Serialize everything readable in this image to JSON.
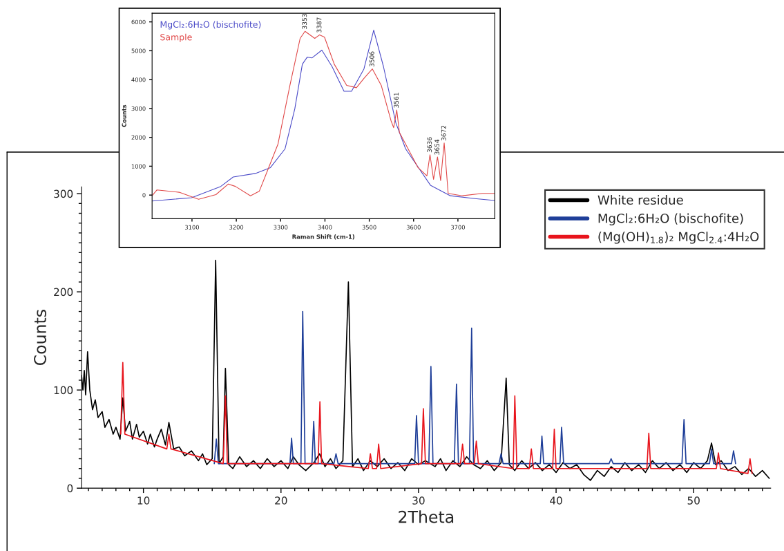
{
  "chart_data": [
    {
      "type": "line",
      "xlabel": "2Theta",
      "ylabel": "Counts",
      "xlim": [
        5.5,
        55.6
      ],
      "ylim": [
        0,
        307
      ],
      "xticks": [
        {
          "value": 6,
          "label": null
        },
        {
          "value": 7,
          "label": null
        },
        {
          "value": 8,
          "label": null
        },
        {
          "value": 9,
          "label": null
        },
        10,
        {
          "value": 11,
          "label": null
        },
        {
          "value": 12,
          "label": null
        },
        {
          "value": 13,
          "label": null
        },
        {
          "value": 14,
          "label": null
        },
        {
          "value": 15,
          "label": null
        },
        {
          "value": 16,
          "label": null
        },
        {
          "value": 17,
          "label": null
        },
        {
          "value": 18,
          "label": null
        },
        {
          "value": 19,
          "label": null
        },
        20,
        {
          "value": 21,
          "label": null
        },
        {
          "value": 22,
          "label": null
        },
        {
          "value": 23,
          "label": null
        },
        {
          "value": 24,
          "label": null
        },
        {
          "value": 25,
          "label": null
        },
        {
          "value": 26,
          "label": null
        },
        {
          "value": 27,
          "label": null
        },
        {
          "value": 28,
          "label": null
        },
        {
          "value": 29,
          "label": null
        },
        30,
        {
          "value": 31,
          "label": null
        },
        {
          "value": 32,
          "label": null
        },
        {
          "value": 33,
          "label": null
        },
        {
          "value": 34,
          "label": null
        },
        {
          "value": 35,
          "label": null
        },
        {
          "value": 36,
          "label": null
        },
        {
          "value": 37,
          "label": null
        },
        {
          "value": 38,
          "label": null
        },
        {
          "value": 39,
          "label": null
        },
        40,
        {
          "value": 41,
          "label": null
        },
        {
          "value": 42,
          "label": null
        },
        {
          "value": 43,
          "label": null
        },
        {
          "value": 44,
          "label": null
        },
        {
          "value": 45,
          "label": null
        },
        {
          "value": 46,
          "label": null
        },
        {
          "value": 47,
          "label": null
        },
        {
          "value": 48,
          "label": null
        },
        {
          "value": 49,
          "label": null
        },
        50,
        {
          "value": 51,
          "label": null
        },
        {
          "value": 52,
          "label": null
        },
        {
          "value": 53,
          "label": null
        },
        {
          "value": 54,
          "label": null
        },
        {
          "value": 55,
          "label": null
        }
      ],
      "yticks": [
        0,
        {
          "value": 10,
          "label": null
        },
        {
          "value": 20,
          "label": null
        },
        {
          "value": 30,
          "label": null
        },
        {
          "value": 40,
          "label": null
        },
        {
          "value": 50,
          "label": null
        },
        {
          "value": 60,
          "label": null
        },
        {
          "value": 70,
          "label": null
        },
        {
          "value": 80,
          "label": null
        },
        {
          "value": 90,
          "label": null
        },
        100,
        {
          "value": 110,
          "label": null
        },
        {
          "value": 120,
          "label": null
        },
        {
          "value": 130,
          "label": null
        },
        {
          "value": 140,
          "label": null
        },
        {
          "value": 150,
          "label": null
        },
        {
          "value": 160,
          "label": null
        },
        {
          "value": 170,
          "label": null
        },
        {
          "value": 180,
          "label": null
        },
        {
          "value": 190,
          "label": null
        },
        200,
        {
          "value": 210,
          "label": null
        },
        {
          "value": 220,
          "label": null
        },
        {
          "value": 230,
          "label": null
        },
        {
          "value": 240,
          "label": null
        },
        {
          "value": 250,
          "label": null
        },
        {
          "value": 260,
          "label": null
        },
        {
          "value": 270,
          "label": null
        },
        {
          "value": 280,
          "label": null
        },
        {
          "value": 290,
          "label": null
        },
        300
      ],
      "legend": "top right",
      "series": [
        {
          "name": "White residue",
          "color": "#000000",
          "x": [
            5.5,
            5.6,
            5.7,
            5.8,
            5.94,
            6.1,
            6.3,
            6.5,
            6.7,
            7.0,
            7.2,
            7.5,
            7.8,
            8.0,
            8.3,
            8.5,
            8.7,
            9.0,
            9.2,
            9.5,
            9.7,
            10.0,
            10.3,
            10.5,
            10.8,
            11.0,
            11.3,
            11.6,
            11.85,
            12.2,
            12.6,
            13.0,
            13.5,
            14.0,
            14.3,
            14.6,
            15.0,
            15.25,
            15.5,
            15.8,
            15.96,
            16.2,
            16.5,
            17.0,
            17.5,
            18.0,
            18.5,
            19.0,
            19.5,
            20.0,
            20.5,
            20.9,
            21.3,
            21.8,
            22.4,
            22.8,
            23.2,
            23.6,
            24.0,
            24.5,
            24.9,
            25.2,
            25.6,
            26.0,
            26.5,
            27.0,
            27.5,
            28.0,
            28.5,
            29.0,
            29.5,
            30.0,
            30.5,
            30.85,
            31.2,
            31.6,
            32.0,
            32.5,
            33.0,
            33.5,
            34.0,
            34.5,
            35.0,
            35.5,
            36.0,
            36.37,
            36.6,
            37.0,
            37.5,
            38.0,
            38.5,
            39.0,
            39.5,
            40.0,
            40.5,
            41.0,
            41.5,
            42.0,
            42.5,
            43.0,
            43.5,
            44.0,
            44.5,
            45.0,
            45.5,
            46.0,
            46.5,
            47.0,
            47.5,
            48.0,
            48.5,
            49.0,
            49.5,
            50.0,
            50.5,
            51.0,
            51.3,
            51.6,
            52.0,
            52.5,
            53.0,
            53.5,
            54.0,
            54.5,
            55.0,
            55.5
          ],
          "values": [
            115,
            100,
            120,
            95,
            139,
            100,
            80,
            90,
            72,
            78,
            62,
            70,
            55,
            62,
            50,
            92,
            58,
            68,
            50,
            65,
            52,
            58,
            45,
            55,
            42,
            50,
            60,
            44,
            67,
            40,
            42,
            33,
            38,
            28,
            35,
            24,
            30,
            232,
            25,
            32,
            122,
            24,
            20,
            32,
            22,
            28,
            20,
            30,
            22,
            28,
            20,
            32,
            24,
            18,
            26,
            35,
            22,
            30,
            20,
            28,
            210,
            22,
            30,
            18,
            28,
            22,
            30,
            20,
            26,
            18,
            30,
            24,
            28,
            null,
            22,
            30,
            18,
            28,
            22,
            32,
            24,
            20,
            28,
            18,
            26,
            112,
            24,
            18,
            28,
            20,
            26,
            18,
            24,
            16,
            26,
            20,
            24,
            14,
            8,
            18,
            12,
            22,
            16,
            26,
            18,
            24,
            16,
            28,
            20,
            26,
            18,
            24,
            16,
            26,
            20,
            28,
            46,
            24,
            28,
            18,
            22,
            14,
            20,
            12,
            18,
            10
          ]
        },
        {
          "name": "MgCl₂:6H₂O (bischofite)",
          "color": "#1f3f99",
          "x": [
            15.15,
            15.3,
            15.45,
            20.65,
            20.77,
            20.9,
            21.45,
            21.58,
            21.75,
            22.25,
            22.38,
            22.5,
            23.85,
            24.0,
            24.15,
            29.72,
            29.85,
            30.0,
            30.75,
            30.9,
            31.05,
            32.6,
            32.76,
            32.9,
            33.7,
            33.86,
            34.0,
            35.85,
            36.0,
            36.15,
            38.85,
            38.97,
            39.1,
            40.28,
            40.4,
            40.55,
            43.85,
            44.0,
            44.15,
            49.15,
            49.3,
            49.45,
            51.15,
            51.3,
            51.45,
            52.75,
            52.9,
            53.05
          ],
          "values": [
            25,
            50,
            25,
            25,
            51,
            25,
            25,
            180,
            25,
            25,
            68,
            25,
            25,
            35,
            25,
            25,
            74,
            25,
            25,
            124,
            25,
            25,
            106,
            25,
            25,
            163,
            25,
            25,
            35,
            25,
            25,
            53,
            25,
            25,
            62,
            25,
            25,
            30,
            25,
            25,
            70,
            25,
            25,
            40,
            25,
            25,
            38,
            25
          ]
        },
        {
          "name": "(Mg(OH)$_{1.8}$)₂ MgCl$_{2.4}$:4H₂O",
          "color": "#e8141c",
          "x": [
            8.35,
            8.5,
            8.65,
            11.7,
            11.85,
            12.0,
            15.8,
            15.96,
            16.1,
            22.7,
            22.83,
            22.95,
            26.35,
            26.5,
            26.65,
            26.95,
            27.1,
            27.25,
            30.22,
            30.35,
            30.5,
            33.05,
            33.2,
            33.35,
            34.05,
            34.2,
            34.35,
            36.88,
            37.0,
            37.15,
            38.05,
            38.2,
            38.35,
            39.75,
            39.87,
            40.0,
            46.6,
            46.74,
            46.88,
            51.65,
            51.8,
            51.95,
            53.95,
            54.1,
            54.25
          ],
          "values": [
            55,
            128,
            55,
            40,
            55,
            40,
            25,
            94,
            25,
            25,
            88,
            25,
            20,
            35,
            20,
            20,
            45,
            20,
            25,
            81,
            25,
            25,
            45,
            25,
            25,
            48,
            25,
            20,
            94,
            20,
            20,
            40,
            20,
            20,
            60,
            20,
            20,
            56,
            20,
            20,
            36,
            20,
            15,
            30,
            15
          ]
        }
      ]
    },
    {
      "type": "line",
      "xlabel": "Raman Shift (cm-1)",
      "ylabel": "Counts",
      "xlim": [
        3010,
        3783
      ],
      "ylim": [
        -820,
        6300
      ],
      "xticks": [
        3100,
        3200,
        3300,
        3400,
        3500,
        3600,
        3700
      ],
      "yticks": [
        0,
        1000,
        2000,
        3000,
        4000,
        5000,
        6000
      ],
      "legend": "top left",
      "annotations": [
        {
          "text": "3353",
          "x": 3355,
          "y": 5673
        },
        {
          "text": "3387",
          "x": 3388,
          "y": 5551
        },
        {
          "text": "3506",
          "x": 3507,
          "y": 4371
        },
        {
          "text": "3561",
          "x": 3562,
          "y": 2947
        },
        {
          "text": "3636",
          "x": 3637,
          "y": 1400
        },
        {
          "text": "3654",
          "x": 3654,
          "y": 1319
        },
        {
          "text": "3672",
          "x": 3669,
          "y": 1807
        }
      ],
      "series": [
        {
          "name": "MgCl₂:6H₂O (bischofite)",
          "color": "#4b4bc8",
          "x": [
            3010,
            3099,
            3165,
            3193,
            3243,
            3277,
            3310,
            3332,
            3349,
            3360,
            3371,
            3393,
            3416,
            3443,
            3460,
            3488,
            3510,
            3532,
            3560,
            3582,
            3638,
            3683,
            3738,
            3783
          ],
          "values": [
            -204,
            -90,
            300,
            627,
            749,
            952,
            1603,
            2987,
            4534,
            4778,
            4754,
            5022,
            4453,
            3598,
            3598,
            4371,
            5714,
            4453,
            2499,
            1603,
            342,
            -24,
            -122,
            -187
          ]
        },
        {
          "name": "Sample",
          "color": "#e04848",
          "x": [
            3010,
            3021,
            3071,
            3115,
            3154,
            3182,
            3198,
            3232,
            3252,
            3271,
            3294,
            3321,
            3344,
            3355,
            3377,
            3388,
            3399,
            3421,
            3449,
            3471,
            3488,
            3507,
            3527,
            3549,
            3555,
            3562,
            3568,
            3610,
            3630,
            3637,
            3645,
            3654,
            3661,
            3669,
            3678,
            3710,
            3755,
            3783
          ],
          "values": [
            -24,
            179,
            98,
            -147,
            16,
            383,
            301,
            -24,
            138,
            871,
            1766,
            3801,
            5429,
            5673,
            5429,
            5551,
            5470,
            4534,
            3801,
            3720,
            4045,
            4371,
            3801,
            2580,
            2336,
            2947,
            2173,
            952,
            667,
            1400,
            545,
            1319,
            505,
            1807,
            57,
            -24,
            57,
            57
          ]
        }
      ]
    }
  ]
}
